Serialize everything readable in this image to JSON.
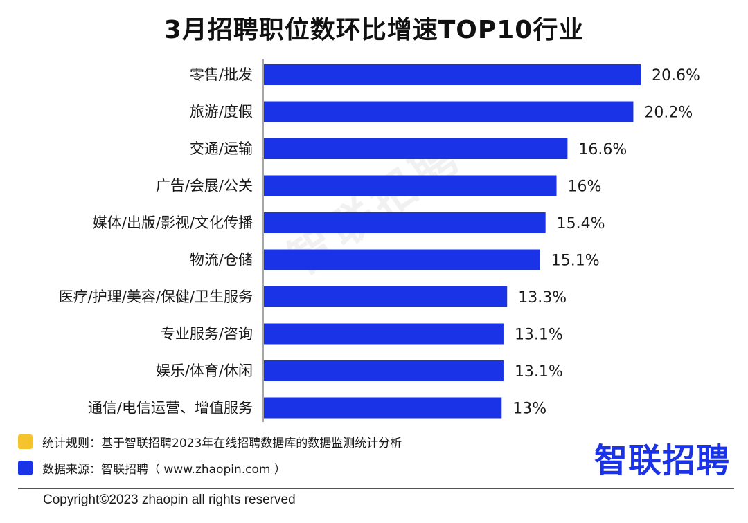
{
  "title": "3月招聘职位数环比增速TOP10行业",
  "watermark": "智联招聘",
  "bar_color": "#1a33e6",
  "chart_data": {
    "type": "bar",
    "orientation": "horizontal",
    "title": "3月招聘职位数环比增速TOP10行业",
    "categories": [
      "零售/批发",
      "旅游/度假",
      "交通/运输",
      "广告/会展/公关",
      "媒体/出版/影视/文化传播",
      "物流/仓储",
      "医疗/护理/美容/保健/卫生服务",
      "专业服务/咨询",
      "娱乐/体育/休闲",
      "通信/电信运营、增值服务"
    ],
    "values": [
      20.6,
      20.2,
      16.6,
      16,
      15.4,
      15.1,
      13.3,
      13.1,
      13.1,
      13
    ],
    "value_labels": [
      "20.6%",
      "20.2%",
      "16.6%",
      "16%",
      "15.4%",
      "15.1%",
      "13.3%",
      "13.1%",
      "13.1%",
      "13%"
    ],
    "xlim": [
      0,
      20.6
    ],
    "grid": false
  },
  "footnotes": [
    {
      "text": "统计规则：基于智联招聘2023年在线招聘数据库的数据监测统计分析",
      "color": "#f5c32c"
    },
    {
      "text": "数据来源：智联招聘（ www.zhaopin.com ）",
      "color": "#1a33e6"
    }
  ],
  "logo": "智联招聘",
  "copyright": "Copyright©2023 zhaopin all rights reserved"
}
